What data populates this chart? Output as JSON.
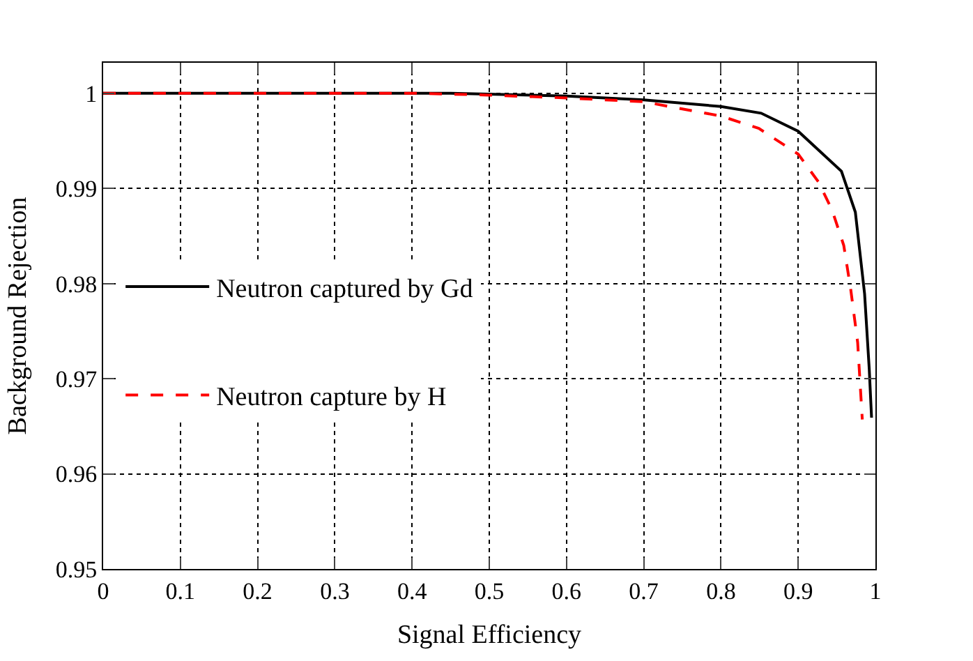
{
  "chart_data": {
    "type": "line",
    "xlabel": "Signal Efficiency",
    "ylabel": "Background Rejection",
    "xlim": [
      0,
      1
    ],
    "ylim": [
      0.95,
      1.0032
    ],
    "xticks": [
      0,
      0.1,
      0.2,
      0.3,
      0.4,
      0.5,
      0.6,
      0.7,
      0.8,
      0.9,
      1
    ],
    "yticks": [
      0.95,
      0.96,
      0.97,
      0.98,
      0.99,
      1
    ],
    "grid": true,
    "legend": "left",
    "marker": "none",
    "series": [
      {
        "name": "Neutron captured by Gd",
        "color": "#000000",
        "line_style": "solid",
        "x": [
          0,
          0.2,
          0.45,
          0.6,
          0.7,
          0.8,
          0.852,
          0.9,
          0.956,
          0.974,
          0.986,
          0.992,
          0.995
        ],
        "values": [
          1,
          1,
          1,
          0.9997,
          0.9993,
          0.9986,
          0.9979,
          0.996,
          0.9918,
          0.9875,
          0.9789,
          0.971,
          0.9659
        ]
      },
      {
        "name": "Neutron capture by H",
        "color": "#ff0000",
        "line_style": "dashed",
        "x": [
          0,
          0.2,
          0.4,
          0.5,
          0.6,
          0.7,
          0.8,
          0.849,
          0.9,
          0.926,
          0.944,
          0.959,
          0.968,
          0.977,
          0.983
        ],
        "values": [
          1,
          1,
          1,
          0.9998,
          0.9995,
          0.9991,
          0.9976,
          0.9963,
          0.9936,
          0.9907,
          0.9877,
          0.984,
          0.9794,
          0.9738,
          0.9657
        ]
      }
    ]
  }
}
